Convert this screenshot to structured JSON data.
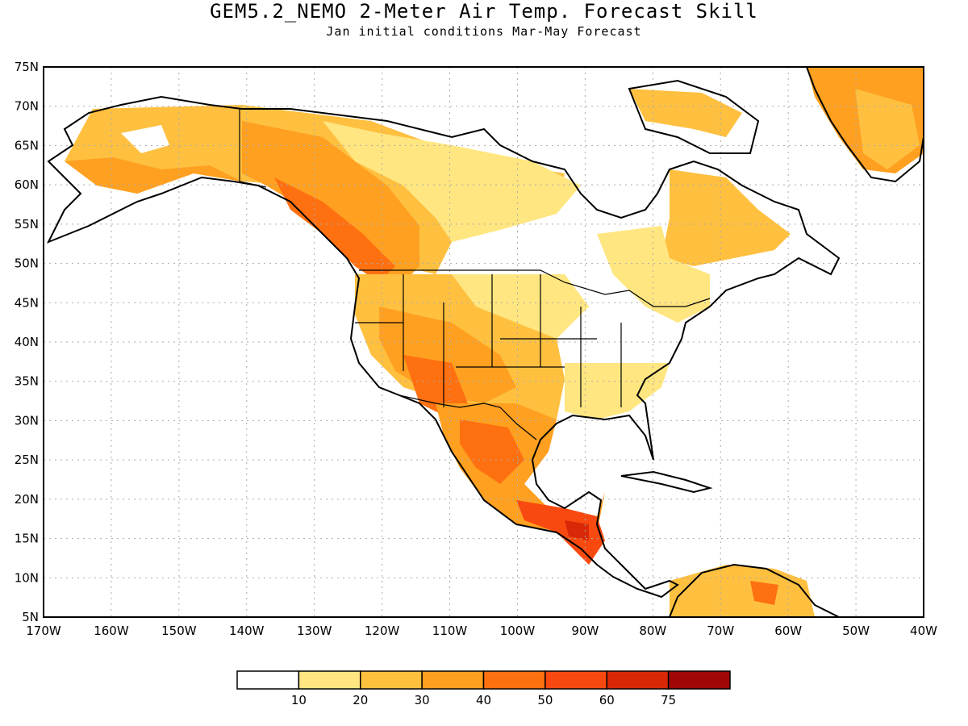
{
  "title": "GEM5.2_NEMO 2-Meter Air Temp. Forecast Skill",
  "subtitle": "Jan initial conditions   Mar-May Forecast",
  "map": {
    "lat_labels": [
      "75N",
      "70N",
      "65N",
      "60N",
      "55N",
      "50N",
      "45N",
      "40N",
      "35N",
      "30N",
      "25N",
      "20N",
      "15N",
      "10N",
      "5N"
    ],
    "lon_labels": [
      "170W",
      "160W",
      "150W",
      "140W",
      "130W",
      "120W",
      "110W",
      "100W",
      "90W",
      "80W",
      "70W",
      "60W",
      "50W",
      "40W"
    ],
    "lat_range": [
      5,
      75
    ],
    "lon_range": [
      -170,
      -40
    ],
    "grid": "dotted"
  },
  "colorbar": {
    "colors": [
      "#ffffff",
      "#ffe680",
      "#ffc040",
      "#ffa020",
      "#ff7010",
      "#f84a10",
      "#d82808",
      "#a00808"
    ],
    "labels": [
      "10",
      "20",
      "30",
      "40",
      "50",
      "60",
      "75"
    ]
  }
}
